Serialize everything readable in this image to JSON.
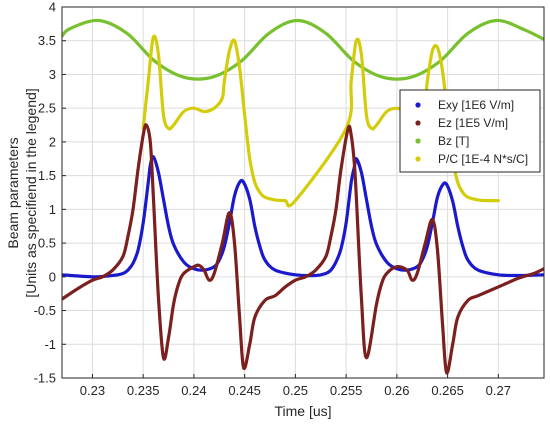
{
  "chart_data": {
    "type": "line",
    "title": "",
    "xlabel": "Time [us]",
    "ylabel": [
      "Beam parameters",
      "[Units as specifiend in the legend]"
    ],
    "xlim": [
      0.227,
      0.2745
    ],
    "ylim": [
      -1.5,
      4
    ],
    "xticks": [
      "0.23",
      "0.235",
      "0.24",
      "0.245",
      "0.25",
      "0.255",
      "0.26",
      "0.265",
      "0.27"
    ],
    "yticks": [
      "-1.5",
      "-1",
      "-0.5",
      "0",
      "0.5",
      "1",
      "1.5",
      "2",
      "2.5",
      "3",
      "3.5",
      "4"
    ],
    "grid": true,
    "legend_position": "right",
    "series": [
      {
        "name": "Exy [1E6 V/m]",
        "color": "#1a1acc",
        "x": [
          0.227,
          0.23,
          0.232,
          0.233,
          0.2335,
          0.234,
          0.2345,
          0.235,
          0.2355,
          0.2357,
          0.236,
          0.2365,
          0.237,
          0.2375,
          0.238,
          0.239,
          0.24,
          0.241,
          0.242,
          0.2425,
          0.243,
          0.2435,
          0.244,
          0.2445,
          0.2449,
          0.2455,
          0.246,
          0.2465,
          0.247,
          0.248,
          0.25,
          0.252,
          0.253,
          0.2535,
          0.254,
          0.2545,
          0.255,
          0.2555,
          0.2558,
          0.256,
          0.2565,
          0.257,
          0.2575,
          0.258,
          0.259,
          0.26,
          0.261,
          0.262,
          0.2625,
          0.263,
          0.2635,
          0.264,
          0.2645,
          0.2649,
          0.2655,
          0.266,
          0.2665,
          0.267,
          0.268,
          0.27,
          0.272,
          0.2745
        ],
        "y": [
          0.03,
          0.0,
          0.02,
          0.05,
          0.1,
          0.2,
          0.4,
          0.8,
          1.4,
          1.65,
          1.78,
          1.55,
          1.15,
          0.75,
          0.48,
          0.22,
          0.12,
          0.1,
          0.15,
          0.25,
          0.45,
          0.8,
          1.2,
          1.4,
          1.4,
          1.15,
          0.75,
          0.45,
          0.25,
          0.1,
          0.03,
          0.02,
          0.05,
          0.1,
          0.22,
          0.42,
          0.8,
          1.4,
          1.62,
          1.75,
          1.55,
          1.15,
          0.75,
          0.48,
          0.22,
          0.12,
          0.1,
          0.15,
          0.25,
          0.45,
          0.8,
          1.18,
          1.36,
          1.37,
          1.12,
          0.75,
          0.45,
          0.25,
          0.1,
          0.03,
          0.02,
          0.03
        ]
      },
      {
        "name": "Ez [1E5 V/m]",
        "color": "#7b1f1f",
        "x": [
          0.227,
          0.2285,
          0.23,
          0.231,
          0.232,
          0.233,
          0.2335,
          0.234,
          0.2345,
          0.235,
          0.2353,
          0.2357,
          0.236,
          0.2365,
          0.237,
          0.2375,
          0.238,
          0.2385,
          0.239,
          0.24,
          0.2405,
          0.241,
          0.2415,
          0.242,
          0.2428,
          0.2435,
          0.244,
          0.2445,
          0.2449,
          0.2455,
          0.246,
          0.247,
          0.248,
          0.249,
          0.25,
          0.251,
          0.252,
          0.253,
          0.2535,
          0.254,
          0.2545,
          0.2552,
          0.2555,
          0.2558,
          0.256,
          0.2565,
          0.257,
          0.258,
          0.2585,
          0.259,
          0.26,
          0.261,
          0.2615,
          0.262,
          0.2628,
          0.2635,
          0.264,
          0.2645,
          0.2649,
          0.2655,
          0.266,
          0.267,
          0.268,
          0.27,
          0.272,
          0.2735,
          0.2745
        ],
        "y": [
          -0.33,
          -0.18,
          -0.05,
          0.0,
          0.1,
          0.3,
          0.6,
          1.0,
          1.6,
          2.1,
          2.25,
          2.0,
          1.2,
          -0.3,
          -1.2,
          -0.9,
          -0.4,
          -0.1,
          0.05,
          0.15,
          0.17,
          0.1,
          -0.05,
          0.05,
          0.5,
          0.95,
          0.5,
          -0.6,
          -1.35,
          -1.0,
          -0.6,
          -0.35,
          -0.28,
          -0.15,
          -0.05,
          0.0,
          0.1,
          0.3,
          0.6,
          1.0,
          1.6,
          2.2,
          2.1,
          1.7,
          1.2,
          -0.3,
          -1.2,
          -0.4,
          -0.1,
          0.05,
          0.15,
          0.1,
          -0.05,
          0.05,
          0.5,
          0.85,
          0.4,
          -0.7,
          -1.42,
          -1.0,
          -0.6,
          -0.35,
          -0.28,
          -0.15,
          -0.02,
          0.05,
          0.12
        ]
      },
      {
        "name": "Bz [T]",
        "color": "#77c02e",
        "x": [
          0.227,
          0.2278,
          0.2306,
          0.2334,
          0.2362,
          0.239,
          0.2418,
          0.2446,
          0.2474,
          0.2502,
          0.253,
          0.2558,
          0.2586,
          0.2614,
          0.2642,
          0.267,
          0.2698,
          0.2726,
          0.2745
        ],
        "y": [
          3.57,
          3.68,
          3.8,
          3.61,
          3.19,
          2.96,
          2.96,
          3.19,
          3.61,
          3.8,
          3.61,
          3.19,
          2.96,
          2.96,
          3.19,
          3.61,
          3.8,
          3.66,
          3.52
        ]
      },
      {
        "name": "P/C [1E-4 N*s/C]",
        "color": "#d4cc0a",
        "x": [
          0.235,
          0.2355,
          0.236,
          0.2365,
          0.237,
          0.2375,
          0.238,
          0.239,
          0.24,
          0.241,
          0.242,
          0.2428,
          0.243,
          0.2435,
          0.244,
          0.2445,
          0.245,
          0.2455,
          0.246,
          0.2465,
          0.247,
          0.248,
          0.249,
          0.25,
          0.255,
          0.2555,
          0.256,
          0.2565,
          0.257,
          0.2575,
          0.258,
          0.259,
          0.26,
          0.261,
          0.262,
          0.2628,
          0.263,
          0.2635,
          0.264,
          0.2645,
          0.265,
          0.2655,
          0.266,
          0.2665,
          0.267,
          0.268,
          0.269,
          0.27
        ],
        "y": [
          2.2,
          2.9,
          3.55,
          3.3,
          2.4,
          2.2,
          2.25,
          2.45,
          2.5,
          2.45,
          2.5,
          2.65,
          2.9,
          3.35,
          3.5,
          3.1,
          2.4,
          1.75,
          1.4,
          1.25,
          1.18,
          1.14,
          1.13,
          1.13,
          2.2,
          2.9,
          3.5,
          3.3,
          2.4,
          2.2,
          2.25,
          2.45,
          2.5,
          2.45,
          2.5,
          2.65,
          2.9,
          3.35,
          3.4,
          3.05,
          2.4,
          1.75,
          1.4,
          1.25,
          1.18,
          1.14,
          1.13,
          1.13
        ]
      }
    ]
  }
}
